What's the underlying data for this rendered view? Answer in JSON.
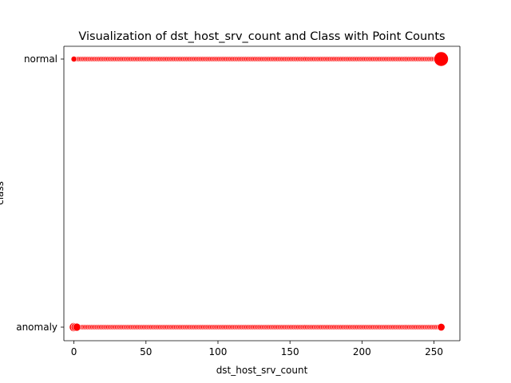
{
  "chart_data": {
    "type": "scatter",
    "title": "Visualization of dst_host_srv_count and Class with Point Counts",
    "xlabel": "dst_host_srv_count",
    "ylabel": "class",
    "xlim": [
      -7,
      268
    ],
    "xticks": [
      0,
      50,
      100,
      150,
      200,
      250
    ],
    "categories": [
      "normal",
      "anomaly"
    ],
    "marker_color": "#ff0000",
    "edge_color": "#ffffff",
    "grid": false,
    "x_range": [
      0,
      255
    ],
    "series": [
      {
        "category": "normal",
        "points": [
          {
            "x": 0,
            "count": 1
          },
          {
            "x": 255,
            "count": 100
          }
        ],
        "note_range": [
          0,
          254
        ]
      },
      {
        "category": "anomaly",
        "points": [
          {
            "x": 0,
            "count": 20
          },
          {
            "x": 1,
            "count": 15
          },
          {
            "x": 2,
            "count": 10
          },
          {
            "x": 255,
            "count": 8
          }
        ],
        "note_range": [
          0,
          254
        ]
      }
    ]
  }
}
